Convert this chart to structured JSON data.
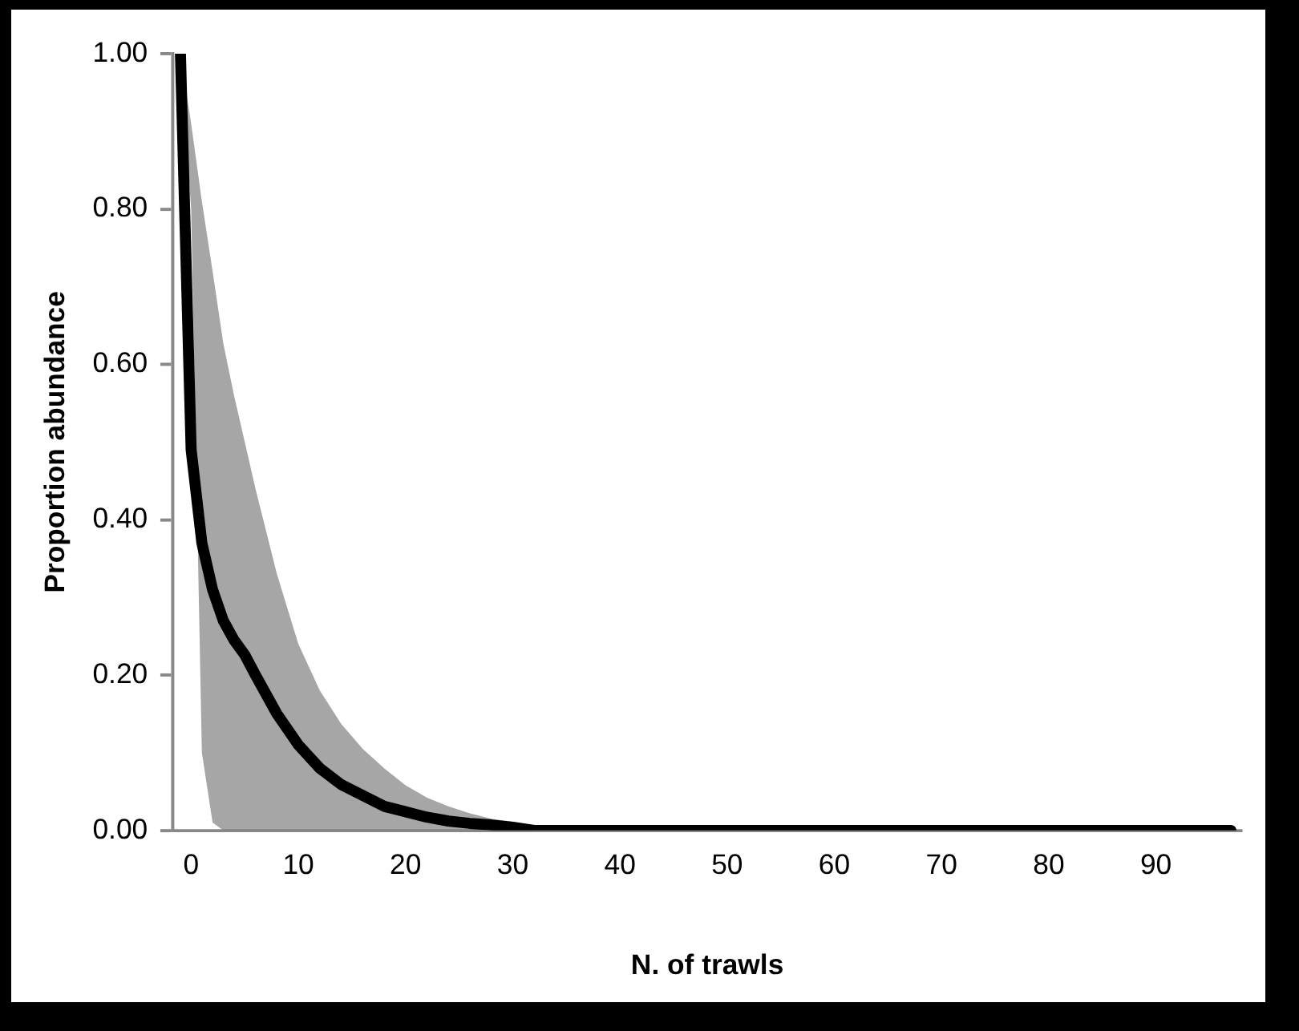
{
  "chart_data": {
    "type": "line",
    "xlabel": "N. of trawls",
    "ylabel": "Proportion abundance",
    "x": [
      -1,
      0,
      1,
      2,
      3,
      4,
      5,
      6,
      8,
      10,
      12,
      14,
      16,
      18,
      20,
      22,
      24,
      26,
      28,
      30,
      32,
      40,
      50,
      60,
      70,
      80,
      90,
      97
    ],
    "series": [
      {
        "color": "#000000",
        "values": [
          1.0,
          0.49,
          0.37,
          0.31,
          0.27,
          0.245,
          0.226,
          0.2,
          0.15,
          0.11,
          0.08,
          0.059,
          0.045,
          0.031,
          0.024,
          0.017,
          0.012,
          0.009,
          0.007,
          0.004,
          0,
          0,
          0,
          0,
          0,
          0,
          0,
          0
        ],
        "lower": [
          1.0,
          0.8,
          0.1,
          0.01,
          0,
          0,
          0,
          0,
          0,
          0,
          0,
          0,
          0,
          0,
          0,
          0,
          0,
          0,
          0,
          0,
          0,
          0,
          0,
          0,
          0,
          0,
          0,
          0
        ],
        "upper": [
          1.0,
          0.91,
          0.81,
          0.72,
          0.627,
          0.56,
          0.5,
          0.44,
          0.33,
          0.24,
          0.18,
          0.137,
          0.105,
          0.08,
          0.058,
          0.042,
          0.031,
          0.022,
          0.015,
          0.011,
          0,
          0,
          0,
          0,
          0,
          0,
          0,
          0
        ]
      }
    ],
    "xlim": [
      -1.7,
      98
    ],
    "xticks": [
      0,
      10,
      20,
      30,
      40,
      50,
      60,
      70,
      80,
      90
    ],
    "ylim": [
      0,
      1
    ],
    "yticks": [
      {
        "value": 0,
        "label": "0.00"
      },
      {
        "value": 0.2,
        "label": "0.20"
      },
      {
        "value": 0.4,
        "label": "0.40"
      },
      {
        "value": 0.6,
        "label": "0.60"
      },
      {
        "value": 0.8,
        "label": "0.80"
      },
      {
        "value": 1,
        "label": "1.00"
      }
    ],
    "grid": false,
    "legend": false,
    "marker": "none",
    "line_style": "solid"
  }
}
